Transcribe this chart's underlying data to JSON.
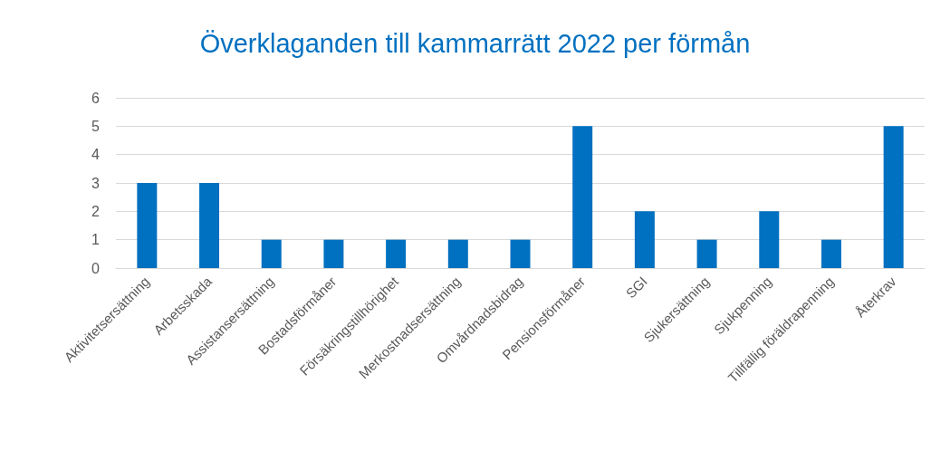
{
  "chart_data": {
    "type": "bar",
    "title": "Överklaganden till kammarrätt 2022 per förmån",
    "categories": [
      "Aktivitetsersättning",
      "Arbetsskada",
      "Assistansersättning",
      "Bostadsförmåner",
      "Försäkringstillhörighet",
      "Merkostnadsersättning",
      "Omvårdnadsbidrag",
      "Pensionsförmåner",
      "SGI",
      "Sjukersättning",
      "Sjukpenning",
      "Tillfällig föräldrapenning",
      "Återkrav"
    ],
    "values": [
      3,
      3,
      1,
      1,
      1,
      1,
      1,
      5,
      2,
      1,
      2,
      1,
      5
    ],
    "color": "#0070c0",
    "ylim": [
      0,
      6
    ],
    "yticks": [
      0,
      1,
      2,
      3,
      4,
      5,
      6
    ],
    "grid": "y"
  }
}
